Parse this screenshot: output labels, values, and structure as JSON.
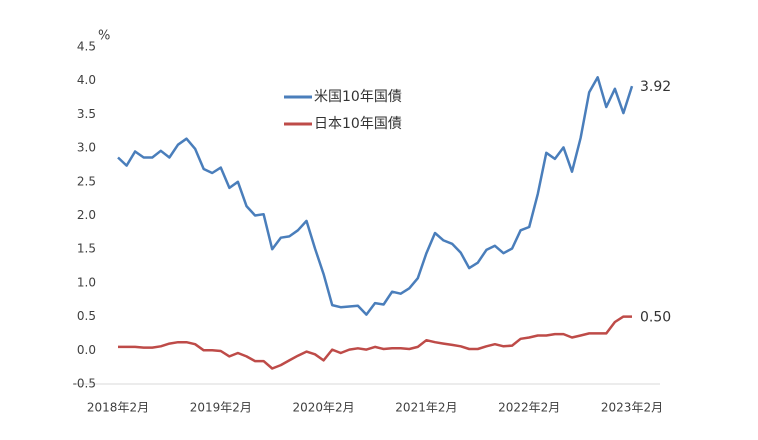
{
  "chart_data": {
    "type": "line",
    "ylabel": "%",
    "categories": [
      "2018年2月",
      null,
      null,
      null,
      null,
      null,
      null,
      null,
      null,
      null,
      null,
      null,
      "2019年2月",
      null,
      null,
      null,
      null,
      null,
      null,
      null,
      null,
      null,
      null,
      null,
      "2020年2月",
      null,
      null,
      null,
      null,
      null,
      null,
      null,
      null,
      null,
      null,
      null,
      "2021年2月",
      null,
      null,
      null,
      null,
      null,
      null,
      null,
      null,
      null,
      null,
      null,
      "2022年2月",
      null,
      null,
      null,
      null,
      null,
      null,
      null,
      null,
      null,
      null,
      null,
      "2023年2月"
    ],
    "series": [
      {
        "name": "米国10年国債",
        "color": "#4a7ebb",
        "values": [
          2.86,
          2.74,
          2.95,
          2.86,
          2.86,
          2.96,
          2.86,
          3.05,
          3.14,
          2.99,
          2.69,
          2.63,
          2.71,
          2.41,
          2.5,
          2.14,
          2.0,
          2.02,
          1.5,
          1.67,
          1.69,
          1.78,
          1.92,
          1.51,
          1.13,
          0.67,
          0.64,
          0.65,
          0.66,
          0.53,
          0.7,
          0.68,
          0.87,
          0.84,
          0.92,
          1.07,
          1.44,
          1.74,
          1.63,
          1.58,
          1.45,
          1.22,
          1.3,
          1.49,
          1.55,
          1.44,
          1.51,
          1.78,
          1.83,
          2.32,
          2.93,
          2.84,
          3.01,
          2.65,
          3.15,
          3.83,
          4.05,
          3.61,
          3.88,
          3.52,
          3.92
        ],
        "value_labels": [
          null,
          null,
          null,
          null,
          null,
          null,
          null,
          null,
          null,
          null,
          null,
          null,
          null,
          null,
          null,
          null,
          null,
          null,
          null,
          null,
          null,
          null,
          null,
          null,
          null,
          null,
          null,
          null,
          null,
          null,
          null,
          null,
          null,
          null,
          null,
          null,
          null,
          null,
          null,
          null,
          null,
          null,
          null,
          null,
          null,
          null,
          null,
          null,
          null,
          null,
          null,
          null,
          null,
          null,
          null,
          null,
          null,
          null,
          null,
          null,
          "3.92"
        ]
      },
      {
        "name": "日本10年国債",
        "color": "#be4b48",
        "values": [
          0.05,
          0.05,
          0.05,
          0.04,
          0.04,
          0.06,
          0.1,
          0.12,
          0.12,
          0.09,
          0.0,
          0.0,
          -0.01,
          -0.09,
          -0.04,
          -0.09,
          -0.16,
          -0.16,
          -0.27,
          -0.22,
          -0.15,
          -0.08,
          -0.02,
          -0.06,
          -0.15,
          0.01,
          -0.04,
          0.01,
          0.03,
          0.01,
          0.05,
          0.02,
          0.03,
          0.03,
          0.02,
          0.05,
          0.15,
          0.12,
          0.1,
          0.08,
          0.06,
          0.02,
          0.02,
          0.06,
          0.09,
          0.06,
          0.07,
          0.17,
          0.19,
          0.22,
          0.22,
          0.24,
          0.24,
          0.19,
          0.22,
          0.25,
          0.25,
          0.25,
          0.42,
          0.5,
          0.5
        ],
        "value_labels": [
          null,
          null,
          null,
          null,
          null,
          null,
          null,
          null,
          null,
          null,
          null,
          null,
          null,
          null,
          null,
          null,
          null,
          null,
          null,
          null,
          null,
          null,
          null,
          null,
          null,
          null,
          null,
          null,
          null,
          null,
          null,
          null,
          null,
          null,
          null,
          null,
          null,
          null,
          null,
          null,
          null,
          null,
          null,
          null,
          null,
          null,
          null,
          null,
          null,
          null,
          null,
          null,
          null,
          null,
          null,
          null,
          null,
          null,
          null,
          null,
          "0.50"
        ]
      }
    ],
    "ylim": [
      -0.5,
      4.5
    ],
    "yticks": [
      -0.5,
      {
        "value": 0,
        "label": "0.0"
      },
      0.5,
      {
        "value": 1,
        "label": "1.0"
      },
      1.5,
      {
        "value": 2,
        "label": "2.0"
      },
      2.5,
      {
        "value": 3,
        "label": "3.0"
      },
      3.5,
      {
        "value": 4,
        "label": "4.0"
      },
      4.5
    ],
    "legend": "upper-center"
  }
}
